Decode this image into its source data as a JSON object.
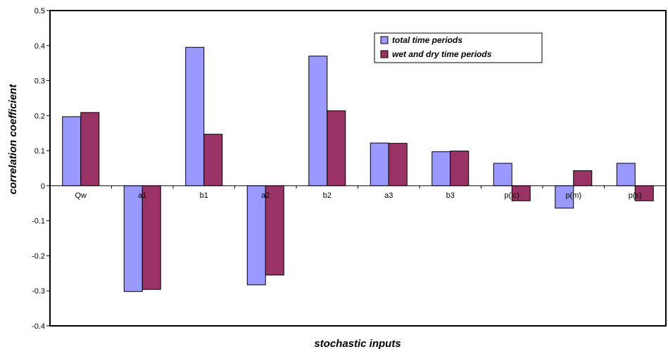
{
  "chart_data": {
    "type": "bar",
    "xlabel": "stochastic inputs",
    "ylabel": "correlation coefficient",
    "ylim": [
      -0.4,
      0.5
    ],
    "yticks": [
      0.5,
      0.4,
      0.3,
      0.2,
      0.1,
      0,
      -0.1,
      -0.2,
      -0.3,
      -0.4
    ],
    "ytick_labels": [
      "0.5",
      "0.4",
      "0.3",
      "0.2",
      "0.1",
      "0",
      "-0.1",
      "-0.2",
      "-0.3",
      "-0.4"
    ],
    "categories": [
      "Qw",
      "a1",
      "b1",
      "a2",
      "b2",
      "a3",
      "b3",
      "p(lc)",
      "p(m)",
      "p(s)"
    ],
    "series": [
      {
        "name": "total time periods",
        "color": "#9999ff",
        "values": [
          0.197,
          -0.302,
          0.395,
          -0.283,
          0.37,
          0.122,
          0.097,
          0.064,
          -0.064,
          0.064
        ]
      },
      {
        "name": "wet and dry time periods",
        "color": "#993366",
        "values": [
          0.209,
          -0.296,
          0.147,
          -0.255,
          0.214,
          0.121,
          0.099,
          -0.043,
          0.043,
          -0.043
        ]
      }
    ],
    "legend_position": "top-right",
    "grid": false
  }
}
